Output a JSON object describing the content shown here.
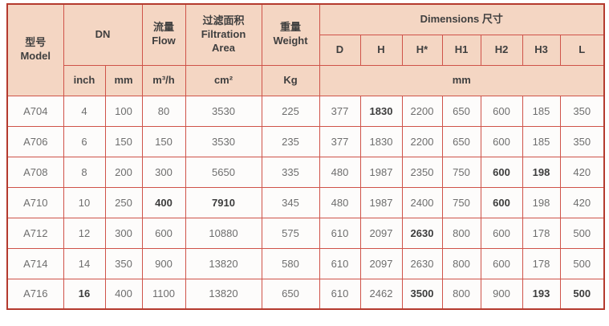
{
  "colors": {
    "header_bg": "#f4d6c3",
    "row_bg": "#fdfcfb",
    "border_inner": "#cf5349",
    "border_outer": "#b43a2e",
    "header_text": "#3f3f3f",
    "cell_text": "#6e6e6e"
  },
  "table": {
    "header": {
      "model_zh": "型号",
      "model_en": "Model",
      "dn": "DN",
      "flow_zh": "流量",
      "flow_en": "Flow",
      "filtration_zh": "过滤面积",
      "filtration_en": "Filtration Area",
      "weight_zh": "重量",
      "weight_en": "Weight",
      "dimensions": "Dimensions 尺寸",
      "dim_cols": [
        "D",
        "H",
        "H*",
        "H1",
        "H2",
        "H3",
        "L"
      ],
      "units": {
        "inch": "inch",
        "mm": "mm",
        "flow": "m³/h",
        "area": "cm²",
        "weight": "Kg",
        "dim": "mm"
      }
    },
    "rows": [
      {
        "model": "A704",
        "cells": [
          "4",
          "100",
          "80",
          "3530",
          "225",
          "377",
          "1830",
          "2200",
          "650",
          "600",
          "185",
          "350"
        ],
        "bold": [
          6
        ]
      },
      {
        "model": "A706",
        "cells": [
          "6",
          "150",
          "150",
          "3530",
          "235",
          "377",
          "1830",
          "2200",
          "650",
          "600",
          "185",
          "350"
        ],
        "bold": []
      },
      {
        "model": "A708",
        "cells": [
          "8",
          "200",
          "300",
          "5650",
          "335",
          "480",
          "1987",
          "2350",
          "750",
          "600",
          "198",
          "420"
        ],
        "bold": [
          9,
          10
        ]
      },
      {
        "model": "A710",
        "cells": [
          "10",
          "250",
          "400",
          "7910",
          "345",
          "480",
          "1987",
          "2400",
          "750",
          "600",
          "198",
          "420"
        ],
        "bold": [
          2,
          3,
          9
        ]
      },
      {
        "model": "A712",
        "cells": [
          "12",
          "300",
          "600",
          "10880",
          "575",
          "610",
          "2097",
          "2630",
          "800",
          "600",
          "178",
          "500"
        ],
        "bold": [
          7
        ]
      },
      {
        "model": "A714",
        "cells": [
          "14",
          "350",
          "900",
          "13820",
          "580",
          "610",
          "2097",
          "2630",
          "800",
          "600",
          "178",
          "500"
        ],
        "bold": []
      },
      {
        "model": "A716",
        "cells": [
          "16",
          "400",
          "1100",
          "13820",
          "650",
          "610",
          "2462",
          "3500",
          "800",
          "900",
          "193",
          "500"
        ],
        "bold": [
          0,
          7,
          10,
          11
        ]
      }
    ]
  }
}
